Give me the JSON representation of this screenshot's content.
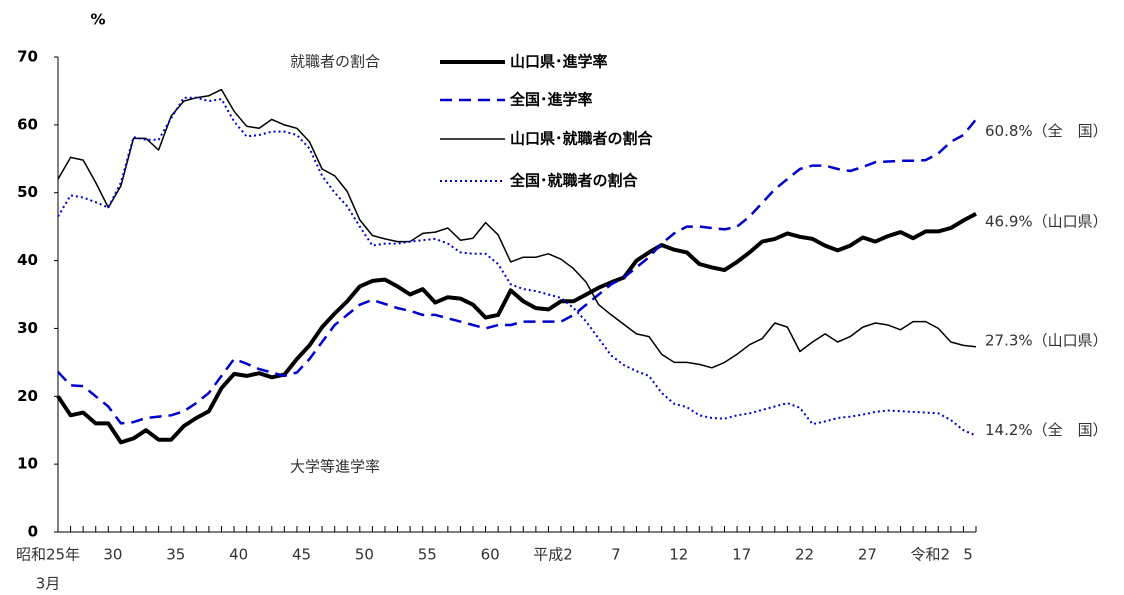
{
  "chart_data": {
    "type": "line",
    "y_unit": "%",
    "x_label_note": "3月",
    "annotations": [
      "就職者の割合",
      "大学等進学率"
    ],
    "categories": [
      "昭和25年",
      null,
      null,
      null,
      null,
      "30",
      null,
      null,
      null,
      null,
      "35",
      null,
      null,
      null,
      null,
      "40",
      null,
      null,
      null,
      null,
      "45",
      null,
      null,
      null,
      null,
      "50",
      null,
      null,
      null,
      null,
      "55",
      null,
      null,
      null,
      null,
      "60",
      null,
      null,
      null,
      null,
      "平成2",
      null,
      null,
      null,
      null,
      "7",
      null,
      null,
      null,
      null,
      "12",
      null,
      null,
      null,
      null,
      "17",
      null,
      null,
      null,
      null,
      "22",
      null,
      null,
      null,
      null,
      "27",
      null,
      null,
      null,
      null,
      "令和2",
      null,
      null,
      "5"
    ],
    "ylim": [
      0,
      70
    ],
    "yticks": [
      0,
      10,
      20,
      30,
      40,
      50,
      60,
      70
    ],
    "grid": false,
    "series": [
      {
        "name": "山口県･進学率",
        "color": "#000000",
        "style": "solid",
        "line_width": 4,
        "end_label": "46.9%（山口県）",
        "values": [
          20,
          17.2,
          17.6,
          16,
          16,
          13.2,
          13.8,
          15,
          13.6,
          13.6,
          15.6,
          16.8,
          17.8,
          21.2,
          23.3,
          23,
          23.4,
          22.8,
          23.2,
          25.5,
          27.5,
          30.2,
          32.2,
          34,
          36.2,
          37,
          37.2,
          36.2,
          35,
          35.8,
          33.8,
          34.6,
          34.4,
          33.5,
          31.6,
          32,
          35.6,
          34,
          33,
          32.8,
          34,
          34,
          35,
          36,
          36.8,
          37.5,
          40,
          41.2,
          42.3,
          41.6,
          41.2,
          39.5,
          39,
          38.6,
          39.8,
          41.2,
          42.8,
          43.2,
          44,
          43.5,
          43.2,
          42.2,
          41.5,
          42.2,
          43.4,
          42.8,
          43.6,
          44.2,
          43.3,
          44.3,
          44.3,
          44.8,
          45.9,
          46.9
        ]
      },
      {
        "name": "全国･進学率",
        "color": "#0000cc",
        "style": "dashed",
        "line_width": 2.5,
        "end_label": "60.8%（全　国）",
        "values": [
          23.6,
          21.6,
          21.5,
          20,
          18.5,
          16,
          16.2,
          16.8,
          17,
          17.2,
          17.8,
          19,
          20.5,
          23,
          25.5,
          24.8,
          24,
          23.5,
          23,
          23.5,
          25.5,
          28,
          30.5,
          32,
          33.5,
          34.2,
          33.6,
          33,
          32.6,
          32,
          32,
          31.5,
          31,
          30.5,
          30,
          30.5,
          30.5,
          31,
          31,
          31,
          31,
          32,
          33.5,
          35,
          36.5,
          37.5,
          39,
          40.5,
          42.5,
          44,
          45,
          45,
          44.8,
          44.6,
          45,
          46.5,
          48.5,
          50.5,
          52,
          53.5,
          54,
          54,
          53.5,
          53.2,
          53.8,
          54.5,
          54.6,
          54.7,
          54.7,
          54.8,
          55.8,
          57.5,
          58.5,
          60.8
        ]
      },
      {
        "name": "山口県･就職者の割合",
        "color": "#000000",
        "style": "solid",
        "line_width": 1.5,
        "end_label": "27.3%（山口県）",
        "values": [
          52,
          55.2,
          54.8,
          51.5,
          47.8,
          51,
          58,
          58,
          56.3,
          61.3,
          63.5,
          64,
          64.3,
          65.2,
          62,
          59.8,
          59.5,
          60.8,
          60,
          59.5,
          57.5,
          53.5,
          52.5,
          50.2,
          46,
          43.7,
          43.2,
          42.8,
          42.8,
          44,
          44.2,
          44.8,
          43,
          43.3,
          45.6,
          43.8,
          39.8,
          40.5,
          40.5,
          41,
          40.2,
          38.8,
          36.8,
          33.5,
          32,
          30.6,
          29.2,
          28.8,
          26.2,
          25,
          25,
          24.7,
          24.2,
          25,
          26.2,
          27.6,
          28.5,
          30.8,
          30.2,
          26.6,
          28,
          29.2,
          28,
          28.8,
          30.2,
          30.8,
          30.5,
          29.8,
          31,
          31,
          30,
          28,
          27.5,
          27.3
        ]
      },
      {
        "name": "全国･就職者の割合",
        "color": "#0000cc",
        "style": "dotted",
        "line_width": 2,
        "end_label": "14.2%（全　国）",
        "values": [
          46.5,
          49.6,
          49.3,
          48.6,
          47.8,
          51.5,
          58.2,
          57.8,
          57.8,
          61,
          64,
          64,
          63.5,
          63.8,
          60.5,
          58.3,
          58.5,
          59,
          59,
          58.5,
          56.5,
          52.5,
          50,
          48,
          45,
          42.2,
          42.5,
          42.5,
          42.8,
          43,
          43.2,
          42.5,
          41.2,
          41,
          41,
          39.5,
          36.5,
          35.8,
          35.5,
          35,
          34.5,
          33,
          31,
          28.5,
          26,
          24.6,
          23.7,
          23,
          20.5,
          18.9,
          18.4,
          17.2,
          16.8,
          16.7,
          17.2,
          17.5,
          18,
          18.5,
          19,
          18.3,
          15.9,
          16.3,
          16.8,
          17,
          17.3,
          17.7,
          17.9,
          17.8,
          17.7,
          17.6,
          17.5,
          16.5,
          15,
          14.2
        ]
      }
    ]
  }
}
